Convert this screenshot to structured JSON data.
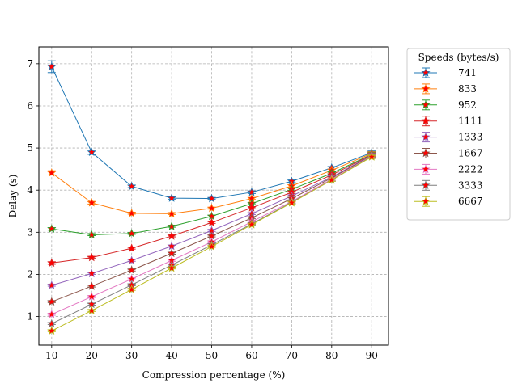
{
  "chart_data": {
    "type": "line",
    "xlabel": "Compression percentage (%)",
    "ylabel": "Delay (s)",
    "x": [
      10,
      20,
      30,
      40,
      50,
      60,
      70,
      80,
      90
    ],
    "xticks": [
      "10",
      "20",
      "30",
      "40",
      "50",
      "60",
      "70",
      "80",
      "90"
    ],
    "yticks": [
      "1",
      "2",
      "3",
      "4",
      "5",
      "6",
      "7"
    ],
    "xlim": [
      6.8,
      94.2
    ],
    "ylim": [
      0.32,
      7.4
    ],
    "grid": true,
    "legend": {
      "title": "Speeds (bytes/s)",
      "placement": "outside-right-top"
    },
    "marker": {
      "shape": "star",
      "fill": "#ff0000"
    },
    "series": [
      {
        "name": "741",
        "color": "#1f77b4",
        "values": [
          6.93,
          4.9,
          4.09,
          3.81,
          3.8,
          3.95,
          4.21,
          4.53,
          4.89
        ],
        "errors": [
          0.14,
          0.05,
          0.03,
          0.03,
          0.02,
          0.03,
          0.03,
          0.03,
          0.04
        ]
      },
      {
        "name": "833",
        "color": "#ff7f0e",
        "values": [
          4.41,
          3.7,
          3.45,
          3.44,
          3.57,
          3.8,
          4.1,
          4.47,
          4.87
        ],
        "errors": [
          0.05,
          0.03,
          0.02,
          0.02,
          0.02,
          0.02,
          0.03,
          0.03,
          0.04
        ]
      },
      {
        "name": "952",
        "color": "#2ca02c",
        "values": [
          3.08,
          2.94,
          2.97,
          3.14,
          3.38,
          3.68,
          4.02,
          4.4,
          4.85
        ],
        "errors": [
          0.03,
          0.02,
          0.02,
          0.02,
          0.02,
          0.02,
          0.03,
          0.03,
          0.04
        ]
      },
      {
        "name": "1111",
        "color": "#d62728",
        "values": [
          2.27,
          2.4,
          2.62,
          2.91,
          3.23,
          3.58,
          3.95,
          4.36,
          4.84
        ],
        "errors": [
          0.03,
          0.02,
          0.02,
          0.02,
          0.02,
          0.02,
          0.03,
          0.03,
          0.04
        ]
      },
      {
        "name": "1333",
        "color": "#9467bd",
        "values": [
          1.74,
          2.02,
          2.33,
          2.67,
          3.04,
          3.44,
          3.86,
          4.31,
          4.83
        ],
        "errors": [
          0.02,
          0.02,
          0.02,
          0.02,
          0.02,
          0.02,
          0.03,
          0.03,
          0.04
        ]
      },
      {
        "name": "1667",
        "color": "#8c564b",
        "values": [
          1.35,
          1.72,
          2.1,
          2.5,
          2.91,
          3.34,
          3.8,
          4.29,
          4.82
        ],
        "errors": [
          0.02,
          0.02,
          0.02,
          0.02,
          0.02,
          0.02,
          0.03,
          0.03,
          0.04
        ]
      },
      {
        "name": "2222",
        "color": "#e377c2",
        "values": [
          1.05,
          1.47,
          1.89,
          2.33,
          2.77,
          3.25,
          3.73,
          4.26,
          4.81
        ],
        "errors": [
          0.02,
          0.02,
          0.02,
          0.02,
          0.02,
          0.02,
          0.03,
          0.03,
          0.04
        ]
      },
      {
        "name": "3333",
        "color": "#7f7f7f",
        "values": [
          0.83,
          1.29,
          1.75,
          2.22,
          2.7,
          3.2,
          3.71,
          4.24,
          4.8
        ],
        "errors": [
          0.02,
          0.02,
          0.02,
          0.02,
          0.02,
          0.02,
          0.03,
          0.03,
          0.04
        ]
      },
      {
        "name": "6667",
        "color": "#bcbd22",
        "values": [
          0.66,
          1.14,
          1.64,
          2.15,
          2.66,
          3.18,
          3.7,
          4.24,
          4.79
        ],
        "errors": [
          0.02,
          0.02,
          0.02,
          0.02,
          0.02,
          0.02,
          0.03,
          0.03,
          0.04
        ]
      }
    ]
  }
}
